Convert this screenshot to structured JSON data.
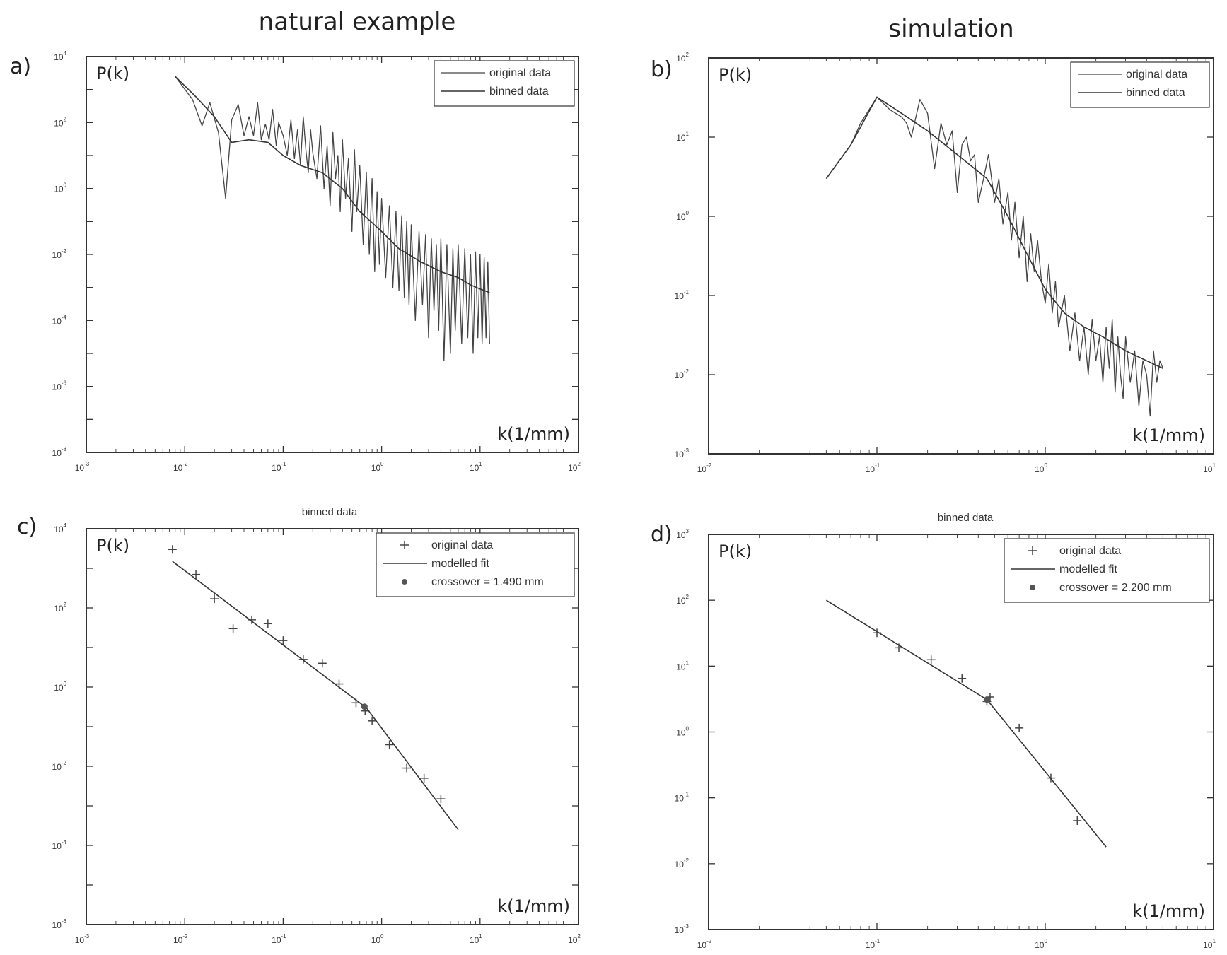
{
  "headers": {
    "left": "natural example",
    "right": "simulation"
  },
  "chart_data": [
    {
      "id": "a",
      "panel_label": "a)",
      "type": "line",
      "title": "",
      "ylabel": "P(k)",
      "xlabel": "k(1/mm)",
      "xscale": "log",
      "yscale": "log",
      "xlim": [
        0.001,
        100
      ],
      "ylim": [
        1e-08,
        10000
      ],
      "xticks": [
        -3,
        -2,
        -1,
        0,
        1,
        2
      ],
      "yticks": [
        -8,
        -6,
        -4,
        -2,
        0,
        2,
        4
      ],
      "legend": {
        "position": "top-right",
        "entries": [
          "original data",
          "binned data"
        ]
      },
      "series": [
        {
          "name": "original data",
          "style": "raw",
          "x": [
            0.008,
            0.012,
            0.015,
            0.018,
            0.022,
            0.026,
            0.03,
            0.035,
            0.04,
            0.045,
            0.05,
            0.055,
            0.06,
            0.066,
            0.072,
            0.078,
            0.085,
            0.09,
            0.1,
            0.11,
            0.12,
            0.13,
            0.14,
            0.15,
            0.16,
            0.17,
            0.18,
            0.19,
            0.2,
            0.22,
            0.24,
            0.26,
            0.28,
            0.3,
            0.32,
            0.34,
            0.36,
            0.38,
            0.4,
            0.43,
            0.46,
            0.5,
            0.53,
            0.56,
            0.6,
            0.65,
            0.7,
            0.75,
            0.8,
            0.85,
            0.9,
            0.95,
            1.0,
            1.1,
            1.2,
            1.3,
            1.4,
            1.5,
            1.6,
            1.7,
            1.8,
            1.9,
            2.0,
            2.2,
            2.4,
            2.6,
            2.8,
            3.0,
            3.2,
            3.4,
            3.6,
            3.8,
            4.0,
            4.3,
            4.6,
            5.0,
            5.3,
            5.6,
            6.0,
            6.5,
            7.0,
            7.5,
            8.0,
            8.5,
            9.0,
            9.5,
            10,
            10.5,
            11,
            11.5,
            12,
            12.5
          ],
          "y": [
            2500,
            500,
            80,
            400,
            50,
            0.5,
            120,
            350,
            40,
            150,
            40,
            400,
            30,
            90,
            30,
            250,
            20,
            100,
            40,
            10,
            120,
            8,
            60,
            5,
            150,
            15,
            3,
            60,
            12,
            2,
            80,
            1,
            20,
            0.3,
            50,
            2,
            10,
            0.2,
            30,
            0.5,
            8,
            0.05,
            15,
            0.2,
            5,
            0.02,
            3,
            0.01,
            2,
            0.003,
            0.8,
            0.005,
            0.5,
            0.002,
            0.3,
            0.001,
            0.2,
            0.0008,
            0.15,
            0.0005,
            0.1,
            0.0003,
            0.08,
            0.0001,
            0.05,
            0.0003,
            0.04,
            3e-05,
            0.03,
            0.0002,
            0.02,
            5e-05,
            0.03,
            6e-06,
            0.02,
            1e-05,
            0.015,
            5e-05,
            0.02,
            2e-05,
            0.015,
            3e-05,
            0.01,
            1e-05,
            0.012,
            3e-05,
            0.01,
            2e-05,
            0.008,
            3e-05,
            0.006,
            2e-05
          ]
        },
        {
          "name": "binned data",
          "style": "binned",
          "x": [
            0.008,
            0.013,
            0.02,
            0.03,
            0.045,
            0.07,
            0.1,
            0.15,
            0.25,
            0.4,
            0.6,
            1.0,
            1.5,
            2.5,
            4.0,
            6.0,
            8.0,
            10,
            12.5
          ],
          "y": [
            2500,
            600,
            150,
            25,
            30,
            25,
            10,
            5,
            3,
            1,
            0.2,
            0.05,
            0.015,
            0.006,
            0.003,
            0.002,
            0.0012,
            0.0009,
            0.0007
          ]
        }
      ]
    },
    {
      "id": "b",
      "panel_label": "b)",
      "type": "line",
      "title": "",
      "ylabel": "P(k)",
      "xlabel": "k(1/mm)",
      "xscale": "log",
      "yscale": "log",
      "xlim": [
        0.01,
        10
      ],
      "ylim": [
        0.001,
        100
      ],
      "xticks": [
        -2,
        -1,
        0,
        1
      ],
      "yticks": [
        -3,
        -2,
        -1,
        0,
        1,
        2
      ],
      "legend": {
        "position": "top-right",
        "entries": [
          "original data",
          "binned data"
        ]
      },
      "series": [
        {
          "name": "original data",
          "style": "raw",
          "x": [
            0.05,
            0.07,
            0.08,
            0.1,
            0.12,
            0.14,
            0.15,
            0.16,
            0.18,
            0.2,
            0.22,
            0.24,
            0.26,
            0.28,
            0.3,
            0.32,
            0.34,
            0.36,
            0.38,
            0.4,
            0.43,
            0.46,
            0.5,
            0.53,
            0.56,
            0.6,
            0.63,
            0.66,
            0.7,
            0.74,
            0.78,
            0.82,
            0.86,
            0.9,
            0.95,
            1.0,
            1.05,
            1.1,
            1.15,
            1.2,
            1.3,
            1.4,
            1.5,
            1.6,
            1.7,
            1.8,
            1.9,
            2.0,
            2.1,
            2.2,
            2.3,
            2.4,
            2.5,
            2.6,
            2.7,
            2.8,
            2.9,
            3.0,
            3.2,
            3.4,
            3.6,
            3.8,
            4.0,
            4.2,
            4.4,
            4.6,
            4.8,
            5.0
          ],
          "y": [
            3,
            8,
            15,
            32,
            22,
            18,
            15,
            10,
            30,
            20,
            4,
            15,
            8,
            12,
            2,
            8,
            10,
            5,
            6,
            1.5,
            3,
            6,
            1.5,
            3,
            0.8,
            2,
            0.5,
            1.5,
            0.3,
            1,
            0.15,
            0.6,
            0.2,
            0.5,
            0.15,
            0.08,
            0.25,
            0.06,
            0.15,
            0.04,
            0.1,
            0.02,
            0.06,
            0.015,
            0.04,
            0.01,
            0.05,
            0.015,
            0.03,
            0.008,
            0.04,
            0.012,
            0.05,
            0.006,
            0.03,
            0.01,
            0.005,
            0.03,
            0.008,
            0.02,
            0.004,
            0.015,
            0.01,
            0.003,
            0.02,
            0.008,
            0.015,
            0.012
          ]
        },
        {
          "name": "binned data",
          "style": "binned",
          "x": [
            0.05,
            0.07,
            0.1,
            0.14,
            0.2,
            0.3,
            0.45,
            0.6,
            0.8,
            1.0,
            1.3,
            1.7,
            2.2,
            3.0,
            4.0,
            5.0
          ],
          "y": [
            3,
            8,
            32,
            20,
            12,
            6,
            3,
            1,
            0.3,
            0.12,
            0.06,
            0.04,
            0.03,
            0.02,
            0.015,
            0.012
          ]
        }
      ]
    },
    {
      "id": "c",
      "panel_label": "c)",
      "type": "scatter",
      "title": "binned data",
      "ylabel": "P(k)",
      "xlabel": "k(1/mm)",
      "xscale": "log",
      "yscale": "log",
      "xlim": [
        0.001,
        100
      ],
      "ylim": [
        1e-06,
        10000
      ],
      "xticks": [
        -3,
        -2,
        -1,
        0,
        1,
        2
      ],
      "yticks": [
        -6,
        -4,
        -2,
        0,
        2,
        4
      ],
      "legend": {
        "position": "top-right",
        "entries": [
          "original data",
          "modelled fit",
          "crossover = 1.490 mm"
        ]
      },
      "series": [
        {
          "name": "original data",
          "style": "plus",
          "x": [
            0.0075,
            0.013,
            0.02,
            0.031,
            0.048,
            0.07,
            0.1,
            0.16,
            0.25,
            0.37,
            0.55,
            0.68,
            0.8,
            1.2,
            1.8,
            2.7,
            4.0
          ],
          "y": [
            3000,
            700,
            170,
            30,
            50,
            40,
            15,
            5,
            4,
            1.2,
            0.4,
            0.25,
            0.14,
            0.035,
            0.009,
            0.005,
            0.0015
          ]
        },
        {
          "name": "modelled fit",
          "style": "fit",
          "x": [
            0.0075,
            0.7,
            6.0
          ],
          "y": [
            1500,
            0.3,
            0.00025
          ]
        },
        {
          "name": "crossover = 1.490 mm",
          "style": "star",
          "x": [
            0.67
          ],
          "y": [
            0.32
          ]
        }
      ]
    },
    {
      "id": "d",
      "panel_label": "d)",
      "type": "scatter",
      "title": "binned data",
      "ylabel": "P(k)",
      "xlabel": "k(1/mm)",
      "xscale": "log",
      "yscale": "log",
      "xlim": [
        0.01,
        10
      ],
      "ylim": [
        0.001,
        1000
      ],
      "xticks": [
        -2,
        -1,
        0,
        1
      ],
      "yticks": [
        -3,
        -2,
        -1,
        0,
        1,
        2,
        3
      ],
      "legend": {
        "position": "top-right",
        "entries": [
          "original data",
          "modelled fit",
          "crossover = 2.200 mm"
        ]
      },
      "series": [
        {
          "name": "original data",
          "style": "plus",
          "x": [
            0.1,
            0.135,
            0.21,
            0.32,
            0.45,
            0.47,
            0.7,
            1.08,
            1.55
          ],
          "y": [
            32,
            19,
            12.5,
            6.5,
            2.9,
            3.4,
            1.15,
            0.2,
            0.045
          ]
        },
        {
          "name": "modelled fit",
          "style": "fit",
          "x": [
            0.05,
            0.45,
            2.3
          ],
          "y": [
            100,
            3.1,
            0.018
          ]
        },
        {
          "name": "crossover = 2.200 mm",
          "style": "star",
          "x": [
            0.45
          ],
          "y": [
            3.1
          ]
        }
      ]
    }
  ]
}
